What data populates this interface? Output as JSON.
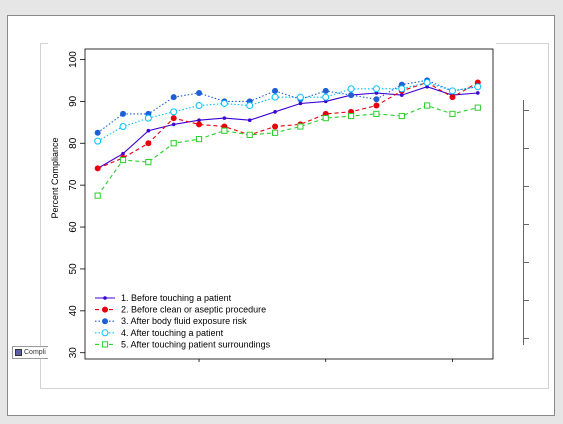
{
  "chart_data": {
    "type": "line",
    "ylabel": "Percent Compliance",
    "xlabel": "",
    "xlim": [
      0.5,
      16.6
    ],
    "ylim": [
      28.5,
      102.5
    ],
    "xticks": [
      5,
      10,
      15
    ],
    "yticks": [
      30,
      40,
      50,
      60,
      70,
      80,
      90,
      100
    ],
    "legend_position": "bottom-left",
    "x": [
      1,
      2,
      3,
      4,
      5,
      6,
      7,
      8,
      9,
      10,
      11,
      12,
      13,
      14,
      15,
      16
    ],
    "series": [
      {
        "name": "1. Before touching a patient",
        "color": "#3b00d6",
        "marker": "small-dot",
        "dash": "solid",
        "values": [
          74,
          77.5,
          83,
          84.5,
          85.5,
          86,
          85.5,
          87.5,
          89.5,
          90,
          91.5,
          92,
          91.5,
          93.5,
          91.5,
          92
        ]
      },
      {
        "name": "2. Before clean or aseptic procedure",
        "color": "#e8000b",
        "marker": "dot",
        "dash": "dashed",
        "values": [
          74,
          76.5,
          80,
          86,
          84.5,
          84,
          82,
          84,
          84.5,
          87,
          87.5,
          89,
          92.5,
          94.5,
          91,
          94.5
        ]
      },
      {
        "name": "3. After body fluid exposure risk",
        "color": "#1f5fd6",
        "marker": "dot",
        "dash": "dotted",
        "values": [
          82.5,
          87,
          87,
          91,
          92,
          90,
          90,
          92.5,
          90.5,
          92.5,
          91.5,
          90.5,
          94,
          95,
          92.5,
          93.5
        ]
      },
      {
        "name": "4. After touching a patient",
        "color": "#00bfff",
        "marker": "open-circle",
        "dash": "dotted",
        "values": [
          80.5,
          84,
          86,
          87.5,
          89,
          89.5,
          89,
          91,
          91,
          91,
          93,
          93,
          93,
          94.5,
          92.5,
          93.5
        ]
      },
      {
        "name": "5. After touching patient surroundings",
        "color": "#2ccf2c",
        "marker": "open-square",
        "dash": "dashed",
        "values": [
          67.5,
          76,
          75.5,
          80,
          81,
          83,
          82,
          82.5,
          84,
          86,
          86.5,
          87,
          86.5,
          89,
          87,
          88.5
        ]
      }
    ]
  },
  "peek_legend": {
    "label": "Compli"
  }
}
